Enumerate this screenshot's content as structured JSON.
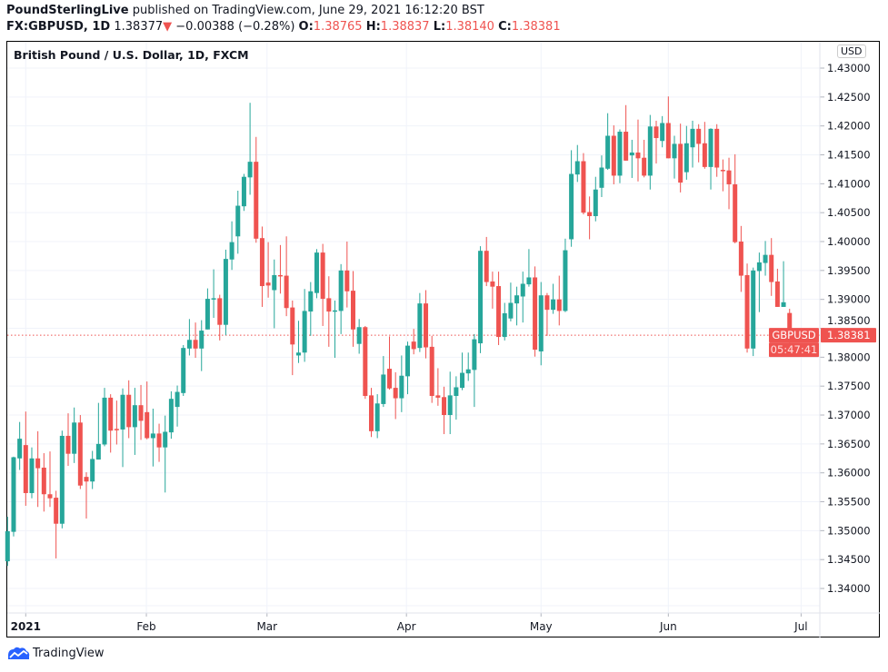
{
  "header": {
    "publisher": "PoundSterlingLive",
    "published_text": "published on TradingView.com, June 29, 2021 16:12:20 BST",
    "symbol": "FX:GBPUSD, 1D",
    "last": "1.38377",
    "change": "−0.00388 (−0.28%)",
    "o_label": "O:",
    "o": "1.38765",
    "h_label": "H:",
    "h": "1.38837",
    "l_label": "L:",
    "l": "1.38140",
    "c_label": "C:",
    "c": "1.38381",
    "direction_icon": "triangle-down-icon"
  },
  "chart": {
    "title": "British Pound / U.S. Dollar, 1D, FXCM",
    "currency": "USD",
    "price_label": {
      "symbol": "GBPUSD",
      "price": "1.38381",
      "countdown": "05:47:41"
    },
    "last_price": 1.38381
  },
  "colors": {
    "up": "#26a69a",
    "down": "#ef5350",
    "grid": "#f0f3fa",
    "brand": "#2962ff"
  },
  "footer": {
    "brand": "TradingView"
  },
  "chart_data": {
    "type": "candlestick",
    "title": "British Pound / U.S. Dollar, 1D, FXCM",
    "ylim": [
      1.3355,
      1.4325
    ],
    "yticks": [
      "1.43000",
      "1.42500",
      "1.42000",
      "1.41500",
      "1.41000",
      "1.40500",
      "1.40000",
      "1.39500",
      "1.39000",
      "1.38500",
      "1.38000",
      "1.37500",
      "1.37000",
      "1.36500",
      "1.36000",
      "1.35500",
      "1.35000",
      "1.34500",
      "1.34000"
    ],
    "xticks": [
      {
        "label": "2021",
        "bar": 3,
        "bold": true
      },
      {
        "label": "Feb",
        "bar": 22.9
      },
      {
        "label": "Mar",
        "bar": 42.8
      },
      {
        "label": "Apr",
        "bar": 65.8
      },
      {
        "label": "May",
        "bar": 88
      },
      {
        "label": "Jun",
        "bar": 109
      },
      {
        "label": "Jul",
        "bar": 130.9
      }
    ],
    "ohlc": [
      [
        1.3447,
        1.3524,
        1.3439,
        1.3499
      ],
      [
        1.3498,
        1.3628,
        1.349,
        1.3627
      ],
      [
        1.3625,
        1.3688,
        1.3605,
        1.3659
      ],
      [
        1.3648,
        1.3706,
        1.3543,
        1.3565
      ],
      [
        1.3565,
        1.3644,
        1.3556,
        1.3625
      ],
      [
        1.3625,
        1.3672,
        1.3541,
        1.3608
      ],
      [
        1.3609,
        1.3634,
        1.3533,
        1.3563
      ],
      [
        1.3563,
        1.3637,
        1.3541,
        1.3556
      ],
      [
        1.3557,
        1.3569,
        1.3452,
        1.3512
      ],
      [
        1.3512,
        1.3673,
        1.3504,
        1.3664
      ],
      [
        1.3664,
        1.3703,
        1.3612,
        1.3633
      ],
      [
        1.3633,
        1.3713,
        1.3617,
        1.3687
      ],
      [
        1.3687,
        1.37,
        1.3572,
        1.3578
      ],
      [
        1.3593,
        1.3601,
        1.3521,
        1.3585
      ],
      [
        1.3585,
        1.3638,
        1.3572,
        1.3624
      ],
      [
        1.3623,
        1.3721,
        1.3623,
        1.365
      ],
      [
        1.3649,
        1.3747,
        1.3646,
        1.373
      ],
      [
        1.373,
        1.3736,
        1.3635,
        1.3673
      ],
      [
        1.3676,
        1.3725,
        1.3649,
        1.3675
      ],
      [
        1.3675,
        1.3746,
        1.361,
        1.3735
      ],
      [
        1.3735,
        1.376,
        1.366,
        1.3679
      ],
      [
        1.3679,
        1.3747,
        1.3631,
        1.3717
      ],
      [
        1.3717,
        1.3752,
        1.3657,
        1.369
      ],
      [
        1.3705,
        1.3758,
        1.3658,
        1.366
      ],
      [
        1.366,
        1.3711,
        1.3611,
        1.3668
      ],
      [
        1.3668,
        1.3685,
        1.3619,
        1.3644
      ],
      [
        1.3644,
        1.3699,
        1.3566,
        1.3671
      ],
      [
        1.367,
        1.3741,
        1.3659,
        1.3728
      ],
      [
        1.3714,
        1.3751,
        1.368,
        1.374
      ],
      [
        1.3738,
        1.3821,
        1.3733,
        1.3816
      ],
      [
        1.3815,
        1.3866,
        1.3803,
        1.383
      ],
      [
        1.383,
        1.386,
        1.3799,
        1.3815
      ],
      [
        1.3815,
        1.3864,
        1.3776,
        1.3846
      ],
      [
        1.3848,
        1.3919,
        1.3848,
        1.3901
      ],
      [
        1.39,
        1.3952,
        1.3868,
        1.3902
      ],
      [
        1.3902,
        1.3908,
        1.3829,
        1.3856
      ],
      [
        1.3856,
        1.3986,
        1.3838,
        1.397
      ],
      [
        1.3969,
        1.4035,
        1.3951,
        1.3999
      ],
      [
        1.4009,
        1.4088,
        1.3979,
        1.4062
      ],
      [
        1.4061,
        1.4117,
        1.4053,
        1.4112
      ],
      [
        1.4111,
        1.424,
        1.4081,
        1.4138
      ],
      [
        1.4138,
        1.4181,
        1.3998,
        1.4005
      ],
      [
        1.4006,
        1.4026,
        1.3887,
        1.3923
      ],
      [
        1.3929,
        1.3999,
        1.3903,
        1.3924
      ],
      [
        1.3916,
        1.3969,
        1.385,
        1.3942
      ],
      [
        1.3942,
        1.3994,
        1.391,
        1.394
      ],
      [
        1.3941,
        1.4009,
        1.3871,
        1.3885
      ],
      [
        1.3886,
        1.3898,
        1.3769,
        1.3822
      ],
      [
        1.3803,
        1.3863,
        1.379,
        1.3808
      ],
      [
        1.3808,
        1.3918,
        1.3792,
        1.388
      ],
      [
        1.3879,
        1.393,
        1.3837,
        1.3914
      ],
      [
        1.3911,
        1.3987,
        1.3902,
        1.3981
      ],
      [
        1.3981,
        1.3996,
        1.3854,
        1.3901
      ],
      [
        1.3902,
        1.394,
        1.3818,
        1.3879
      ],
      [
        1.3879,
        1.3898,
        1.3799,
        1.3881
      ],
      [
        1.388,
        1.3961,
        1.384,
        1.395
      ],
      [
        1.395,
        1.4,
        1.3886,
        1.3914
      ],
      [
        1.3915,
        1.3949,
        1.3818,
        1.3848
      ],
      [
        1.3823,
        1.3866,
        1.3806,
        1.3852
      ],
      [
        1.3852,
        1.3854,
        1.3728,
        1.3733
      ],
      [
        1.3734,
        1.3747,
        1.3662,
        1.3672
      ],
      [
        1.3672,
        1.3736,
        1.366,
        1.372
      ],
      [
        1.3719,
        1.3802,
        1.3714,
        1.377
      ],
      [
        1.378,
        1.3836,
        1.3744,
        1.3746
      ],
      [
        1.3747,
        1.3774,
        1.3693,
        1.3729
      ],
      [
        1.3729,
        1.3803,
        1.3705,
        1.3768
      ],
      [
        1.3767,
        1.3827,
        1.3736,
        1.382
      ],
      [
        1.3827,
        1.3849,
        1.3805,
        1.3814
      ],
      [
        1.3816,
        1.3911,
        1.3809,
        1.3893
      ],
      [
        1.3893,
        1.3916,
        1.3798,
        1.3817
      ],
      [
        1.3818,
        1.3837,
        1.3721,
        1.3733
      ],
      [
        1.3734,
        1.3781,
        1.3716,
        1.373
      ],
      [
        1.3731,
        1.3749,
        1.3667,
        1.37
      ],
      [
        1.37,
        1.3775,
        1.3667,
        1.3734
      ],
      [
        1.3733,
        1.3767,
        1.3692,
        1.3748
      ],
      [
        1.3747,
        1.3808,
        1.3743,
        1.3773
      ],
      [
        1.3772,
        1.3808,
        1.3759,
        1.3779
      ],
      [
        1.3778,
        1.384,
        1.3714,
        1.3831
      ],
      [
        1.3824,
        1.3992,
        1.3807,
        1.3984
      ],
      [
        1.3984,
        1.4008,
        1.3923,
        1.393
      ],
      [
        1.3931,
        1.3948,
        1.3884,
        1.3922
      ],
      [
        1.3923,
        1.3948,
        1.3821,
        1.3835
      ],
      [
        1.3835,
        1.3894,
        1.3829,
        1.3876
      ],
      [
        1.3867,
        1.3929,
        1.3862,
        1.3894
      ],
      [
        1.3893,
        1.3922,
        1.3855,
        1.3907
      ],
      [
        1.3905,
        1.3948,
        1.386,
        1.3927
      ],
      [
        1.3926,
        1.3987,
        1.3922,
        1.3938
      ],
      [
        1.3938,
        1.3957,
        1.3801,
        1.3813
      ],
      [
        1.381,
        1.393,
        1.3786,
        1.3907
      ],
      [
        1.3907,
        1.3911,
        1.3837,
        1.3882
      ],
      [
        1.3882,
        1.3927,
        1.3875,
        1.39
      ],
      [
        1.39,
        1.3941,
        1.3855,
        1.388
      ],
      [
        1.388,
        1.4005,
        1.3878,
        1.3985
      ],
      [
        1.4004,
        1.4158,
        1.3991,
        1.4117
      ],
      [
        1.4116,
        1.4167,
        1.4103,
        1.4139
      ],
      [
        1.4139,
        1.4153,
        1.4047,
        1.405
      ],
      [
        1.4051,
        1.4078,
        1.4004,
        1.4044
      ],
      [
        1.4044,
        1.4112,
        1.4035,
        1.409
      ],
      [
        1.4093,
        1.4149,
        1.4077,
        1.4128
      ],
      [
        1.4126,
        1.4222,
        1.4124,
        1.4183
      ],
      [
        1.4183,
        1.4201,
        1.4099,
        1.4114
      ],
      [
        1.4114,
        1.4194,
        1.4101,
        1.419
      ],
      [
        1.419,
        1.4236,
        1.414,
        1.414
      ],
      [
        1.4149,
        1.4176,
        1.411,
        1.4154
      ],
      [
        1.4154,
        1.4211,
        1.4104,
        1.4144
      ],
      [
        1.4145,
        1.4176,
        1.4111,
        1.4114
      ],
      [
        1.4114,
        1.4219,
        1.409,
        1.4199
      ],
      [
        1.4199,
        1.4209,
        1.4135,
        1.4179
      ],
      [
        1.4174,
        1.4217,
        1.4163,
        1.4205
      ],
      [
        1.4205,
        1.4251,
        1.4144,
        1.4144
      ],
      [
        1.4144,
        1.4183,
        1.4109,
        1.4169
      ],
      [
        1.4169,
        1.4204,
        1.4085,
        1.4102
      ],
      [
        1.412,
        1.42,
        1.4107,
        1.417
      ],
      [
        1.4163,
        1.4209,
        1.4128,
        1.4195
      ],
      [
        1.4195,
        1.4203,
        1.4137,
        1.4169
      ],
      [
        1.417,
        1.4207,
        1.4126,
        1.4129
      ],
      [
        1.4129,
        1.4196,
        1.409,
        1.4195
      ],
      [
        1.4195,
        1.4203,
        1.4112,
        1.4128
      ],
      [
        1.4124,
        1.4142,
        1.4087,
        1.4122
      ],
      [
        1.4123,
        1.4145,
        1.4056,
        1.4099
      ],
      [
        1.4099,
        1.4151,
        1.3997,
        1.3999
      ],
      [
        1.4,
        1.4027,
        1.3913,
        1.3941
      ],
      [
        1.3942,
        1.3962,
        1.3808,
        1.3815
      ],
      [
        1.3815,
        1.3955,
        1.3802,
        1.395
      ],
      [
        1.3949,
        1.3981,
        1.3878,
        1.3964
      ],
      [
        1.3963,
        1.4001,
        1.3941,
        1.3977
      ],
      [
        1.3977,
        1.4006,
        1.3906,
        1.393
      ],
      [
        1.3931,
        1.3953,
        1.3887,
        1.3887
      ],
      [
        1.3887,
        1.3966,
        1.3887,
        1.3895
      ],
      [
        1.38765,
        1.38837,
        1.3814,
        1.38381
      ]
    ]
  }
}
